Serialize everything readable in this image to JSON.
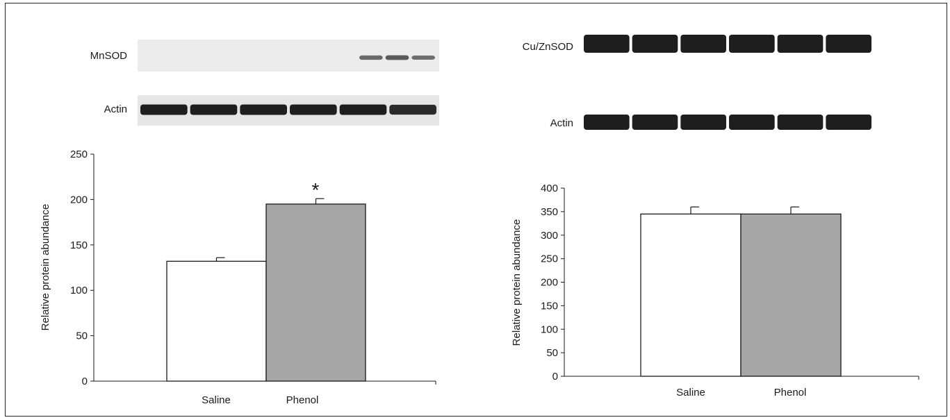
{
  "colors": {
    "saline_bar": "#ffffff",
    "phenol_bar": "#a6a6a8",
    "band": "#1e1e1e",
    "blot_bg": "#eeeeee",
    "axis": "#1a1a1a"
  },
  "panels": [
    {
      "blots": [
        {
          "label": "MnSOD",
          "lanes": [
            0.0,
            0.0,
            0.0,
            0.45,
            0.55,
            0.4
          ]
        },
        {
          "label": "Actin",
          "lanes": [
            1.0,
            1.0,
            1.0,
            1.0,
            1.0,
            0.9
          ]
        }
      ]
    },
    {
      "blots": [
        {
          "label": "Cu/ZnSOD",
          "lanes": [
            1.0,
            1.0,
            1.0,
            1.0,
            1.0,
            1.0
          ]
        },
        {
          "label": "Actin",
          "lanes": [
            1.0,
            1.0,
            1.0,
            1.0,
            1.0,
            1.0
          ]
        }
      ]
    }
  ],
  "chart_data": [
    {
      "type": "bar",
      "categories": [
        "Saline",
        "Phenol"
      ],
      "values": [
        132,
        195
      ],
      "errors": [
        4,
        6
      ],
      "significance": [
        "",
        "*"
      ],
      "ylabel": "Relative protein abundance",
      "ylim": [
        0,
        250
      ],
      "yticks": [
        0,
        50,
        100,
        150,
        200,
        250
      ],
      "grid": false
    },
    {
      "type": "bar",
      "categories": [
        "Saline",
        "Phenol"
      ],
      "values": [
        345,
        345
      ],
      "errors": [
        15,
        15
      ],
      "significance": [
        "",
        ""
      ],
      "ylabel": "Relative protein abundance",
      "ylim": [
        0,
        400
      ],
      "yticks": [
        0,
        50,
        100,
        150,
        200,
        250,
        300,
        350,
        400
      ],
      "grid": false
    }
  ]
}
